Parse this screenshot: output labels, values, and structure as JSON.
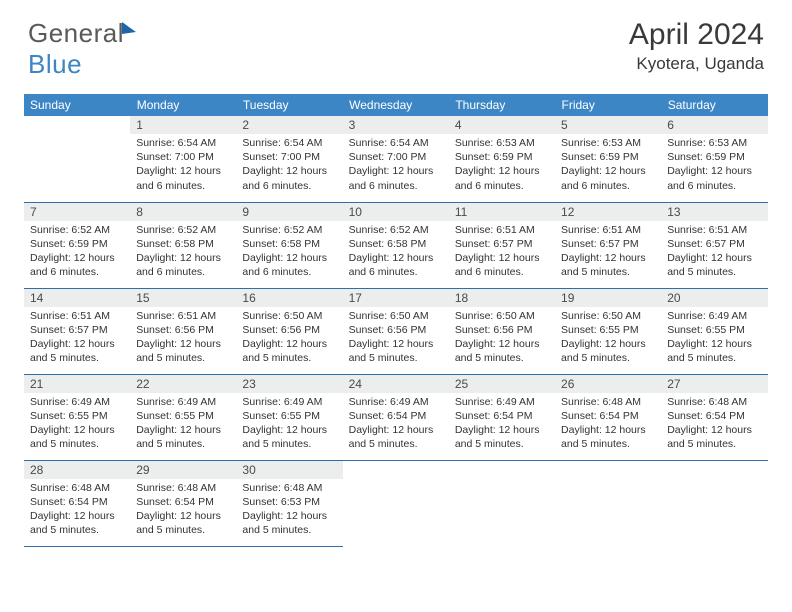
{
  "brand": {
    "part1": "General",
    "part2": "Blue"
  },
  "title": "April 2024",
  "location": "Kyotera, Uganda",
  "colors": {
    "header_bg": "#3d86c6",
    "divider": "#2f6fa8",
    "daynum_bg": "#eceded",
    "text": "#333333",
    "brand_gray": "#5a5a5a",
    "brand_blue": "#3d86c6"
  },
  "weekdays": [
    "Sunday",
    "Monday",
    "Tuesday",
    "Wednesday",
    "Thursday",
    "Friday",
    "Saturday"
  ],
  "weeks": [
    [
      {
        "n": "",
        "sr": "",
        "ss": "",
        "dl": ""
      },
      {
        "n": "1",
        "sr": "Sunrise: 6:54 AM",
        "ss": "Sunset: 7:00 PM",
        "dl": "Daylight: 12 hours and 6 minutes."
      },
      {
        "n": "2",
        "sr": "Sunrise: 6:54 AM",
        "ss": "Sunset: 7:00 PM",
        "dl": "Daylight: 12 hours and 6 minutes."
      },
      {
        "n": "3",
        "sr": "Sunrise: 6:54 AM",
        "ss": "Sunset: 7:00 PM",
        "dl": "Daylight: 12 hours and 6 minutes."
      },
      {
        "n": "4",
        "sr": "Sunrise: 6:53 AM",
        "ss": "Sunset: 6:59 PM",
        "dl": "Daylight: 12 hours and 6 minutes."
      },
      {
        "n": "5",
        "sr": "Sunrise: 6:53 AM",
        "ss": "Sunset: 6:59 PM",
        "dl": "Daylight: 12 hours and 6 minutes."
      },
      {
        "n": "6",
        "sr": "Sunrise: 6:53 AM",
        "ss": "Sunset: 6:59 PM",
        "dl": "Daylight: 12 hours and 6 minutes."
      }
    ],
    [
      {
        "n": "7",
        "sr": "Sunrise: 6:52 AM",
        "ss": "Sunset: 6:59 PM",
        "dl": "Daylight: 12 hours and 6 minutes."
      },
      {
        "n": "8",
        "sr": "Sunrise: 6:52 AM",
        "ss": "Sunset: 6:58 PM",
        "dl": "Daylight: 12 hours and 6 minutes."
      },
      {
        "n": "9",
        "sr": "Sunrise: 6:52 AM",
        "ss": "Sunset: 6:58 PM",
        "dl": "Daylight: 12 hours and 6 minutes."
      },
      {
        "n": "10",
        "sr": "Sunrise: 6:52 AM",
        "ss": "Sunset: 6:58 PM",
        "dl": "Daylight: 12 hours and 6 minutes."
      },
      {
        "n": "11",
        "sr": "Sunrise: 6:51 AM",
        "ss": "Sunset: 6:57 PM",
        "dl": "Daylight: 12 hours and 6 minutes."
      },
      {
        "n": "12",
        "sr": "Sunrise: 6:51 AM",
        "ss": "Sunset: 6:57 PM",
        "dl": "Daylight: 12 hours and 5 minutes."
      },
      {
        "n": "13",
        "sr": "Sunrise: 6:51 AM",
        "ss": "Sunset: 6:57 PM",
        "dl": "Daylight: 12 hours and 5 minutes."
      }
    ],
    [
      {
        "n": "14",
        "sr": "Sunrise: 6:51 AM",
        "ss": "Sunset: 6:57 PM",
        "dl": "Daylight: 12 hours and 5 minutes."
      },
      {
        "n": "15",
        "sr": "Sunrise: 6:51 AM",
        "ss": "Sunset: 6:56 PM",
        "dl": "Daylight: 12 hours and 5 minutes."
      },
      {
        "n": "16",
        "sr": "Sunrise: 6:50 AM",
        "ss": "Sunset: 6:56 PM",
        "dl": "Daylight: 12 hours and 5 minutes."
      },
      {
        "n": "17",
        "sr": "Sunrise: 6:50 AM",
        "ss": "Sunset: 6:56 PM",
        "dl": "Daylight: 12 hours and 5 minutes."
      },
      {
        "n": "18",
        "sr": "Sunrise: 6:50 AM",
        "ss": "Sunset: 6:56 PM",
        "dl": "Daylight: 12 hours and 5 minutes."
      },
      {
        "n": "19",
        "sr": "Sunrise: 6:50 AM",
        "ss": "Sunset: 6:55 PM",
        "dl": "Daylight: 12 hours and 5 minutes."
      },
      {
        "n": "20",
        "sr": "Sunrise: 6:49 AM",
        "ss": "Sunset: 6:55 PM",
        "dl": "Daylight: 12 hours and 5 minutes."
      }
    ],
    [
      {
        "n": "21",
        "sr": "Sunrise: 6:49 AM",
        "ss": "Sunset: 6:55 PM",
        "dl": "Daylight: 12 hours and 5 minutes."
      },
      {
        "n": "22",
        "sr": "Sunrise: 6:49 AM",
        "ss": "Sunset: 6:55 PM",
        "dl": "Daylight: 12 hours and 5 minutes."
      },
      {
        "n": "23",
        "sr": "Sunrise: 6:49 AM",
        "ss": "Sunset: 6:55 PM",
        "dl": "Daylight: 12 hours and 5 minutes."
      },
      {
        "n": "24",
        "sr": "Sunrise: 6:49 AM",
        "ss": "Sunset: 6:54 PM",
        "dl": "Daylight: 12 hours and 5 minutes."
      },
      {
        "n": "25",
        "sr": "Sunrise: 6:49 AM",
        "ss": "Sunset: 6:54 PM",
        "dl": "Daylight: 12 hours and 5 minutes."
      },
      {
        "n": "26",
        "sr": "Sunrise: 6:48 AM",
        "ss": "Sunset: 6:54 PM",
        "dl": "Daylight: 12 hours and 5 minutes."
      },
      {
        "n": "27",
        "sr": "Sunrise: 6:48 AM",
        "ss": "Sunset: 6:54 PM",
        "dl": "Daylight: 12 hours and 5 minutes."
      }
    ],
    [
      {
        "n": "28",
        "sr": "Sunrise: 6:48 AM",
        "ss": "Sunset: 6:54 PM",
        "dl": "Daylight: 12 hours and 5 minutes."
      },
      {
        "n": "29",
        "sr": "Sunrise: 6:48 AM",
        "ss": "Sunset: 6:54 PM",
        "dl": "Daylight: 12 hours and 5 minutes."
      },
      {
        "n": "30",
        "sr": "Sunrise: 6:48 AM",
        "ss": "Sunset: 6:53 PM",
        "dl": "Daylight: 12 hours and 5 minutes."
      },
      {
        "n": "",
        "sr": "",
        "ss": "",
        "dl": ""
      },
      {
        "n": "",
        "sr": "",
        "ss": "",
        "dl": ""
      },
      {
        "n": "",
        "sr": "",
        "ss": "",
        "dl": ""
      },
      {
        "n": "",
        "sr": "",
        "ss": "",
        "dl": ""
      }
    ]
  ]
}
